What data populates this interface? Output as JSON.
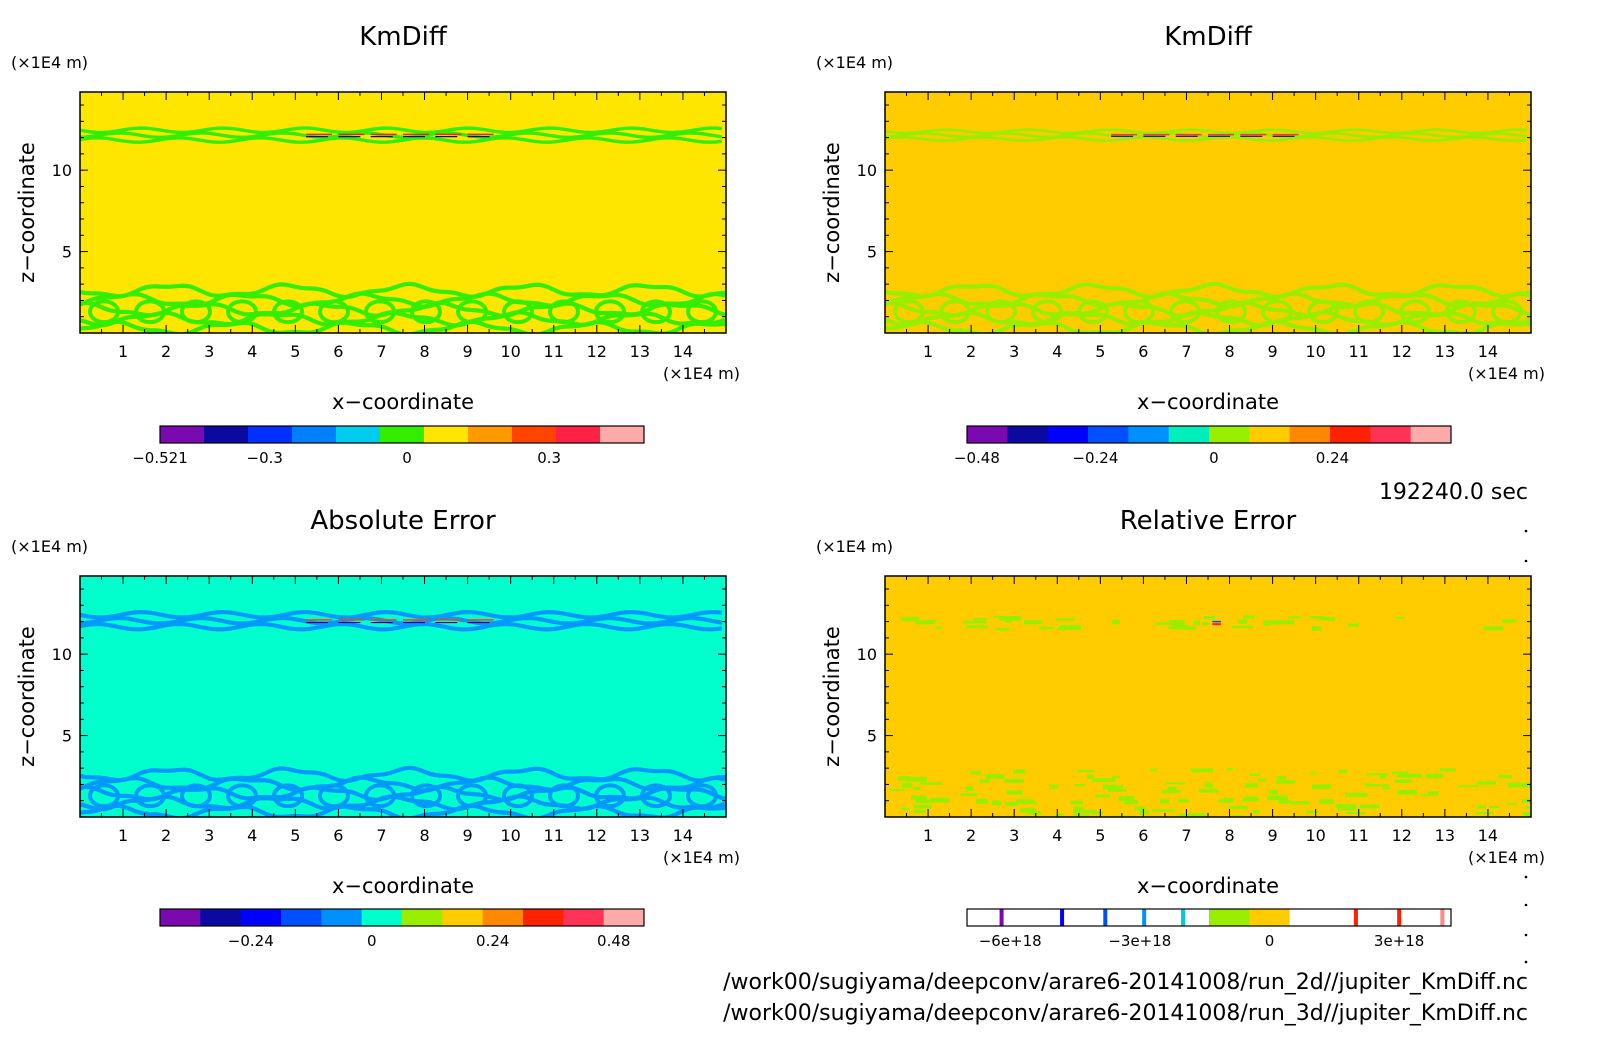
{
  "timestamp": "192240.0 sec",
  "file_paths": [
    "/work00/sugiyama/deepconv/arare6-20141008/run_2d//jupiter_KmDiff.nc",
    "/work00/sugiyama/deepconv/arare6-20141008/run_3d//jupiter_KmDiff.nc"
  ],
  "chart_data": [
    {
      "type": "heatmap",
      "title": "KmDiff",
      "xlabel": "x−coordinate",
      "ylabel": "z−coordinate",
      "x_unit": "(×1E4 m)",
      "y_unit": "(×1E4 m)",
      "xlim": [
        0,
        15
      ],
      "ylim": [
        0,
        14.8
      ],
      "x_ticks": [
        1,
        2,
        3,
        4,
        5,
        6,
        7,
        8,
        9,
        10,
        11,
        12,
        13,
        14
      ],
      "y_ticks": [
        5,
        10
      ],
      "background_color": "#ffe600",
      "bands": [
        {
          "y_range": [
            11.7,
            12.6
          ],
          "color": "#33ee00",
          "texture": "wave"
        },
        {
          "y_range": [
            0,
            2.9
          ],
          "color": "#33ee00",
          "texture": "swirl"
        }
      ],
      "colorbar": {
        "colors": [
          "#7a0ab0",
          "#0a0aa0",
          "#0030ff",
          "#0080ff",
          "#00ccee",
          "#33ee00",
          "#ffe600",
          "#ff9900",
          "#ff4400",
          "#ff2244",
          "#ffaaaa"
        ],
        "tick_values": [
          -0.521,
          -0.3,
          0,
          0.3
        ],
        "tick_labels": [
          "−0.521",
          "−0.3",
          "0",
          "0.3"
        ],
        "range": [
          -0.521,
          0.5
        ]
      }
    },
    {
      "type": "heatmap",
      "title": "KmDiff",
      "xlabel": "x−coordinate",
      "ylabel": "z−coordinate",
      "x_unit": "(×1E4 m)",
      "y_unit": "(×1E4 m)",
      "xlim": [
        0,
        15
      ],
      "ylim": [
        0,
        14.8
      ],
      "x_ticks": [
        1,
        2,
        3,
        4,
        5,
        6,
        7,
        8,
        9,
        10,
        11,
        12,
        13,
        14
      ],
      "y_ticks": [
        5,
        10
      ],
      "background_color": "#ffcc00",
      "bands": [
        {
          "y_range": [
            11.8,
            12.5
          ],
          "color": "#99ee00",
          "texture": "wave"
        },
        {
          "y_range": [
            0,
            2.9
          ],
          "color": "#99ee00",
          "texture": "swirl"
        }
      ],
      "colorbar": {
        "colors": [
          "#7a0ab0",
          "#0a0aa0",
          "#0000ff",
          "#0050ff",
          "#0090ff",
          "#00eebb",
          "#99ee00",
          "#ffcc00",
          "#ff8800",
          "#ff2200",
          "#ff3355",
          "#ffaaaa"
        ],
        "tick_values": [
          -0.48,
          -0.24,
          0,
          0.24
        ],
        "tick_labels": [
          "−0.48",
          "−0.24",
          "0",
          "0.24"
        ],
        "range": [
          -0.5,
          0.48
        ]
      }
    },
    {
      "type": "heatmap",
      "title": "Absolute Error",
      "xlabel": "x−coordinate",
      "ylabel": "z−coordinate",
      "x_unit": "(×1E4 m)",
      "y_unit": "(×1E4 m)",
      "xlim": [
        0,
        15
      ],
      "ylim": [
        0,
        14.8
      ],
      "x_ticks": [
        1,
        2,
        3,
        4,
        5,
        6,
        7,
        8,
        9,
        10,
        11,
        12,
        13,
        14
      ],
      "y_ticks": [
        5,
        10
      ],
      "background_color": "#00ffcc",
      "bands": [
        {
          "y_range": [
            11.5,
            12.6
          ],
          "color": "#0099ff",
          "texture": "wave"
        },
        {
          "y_range": [
            0,
            2.9
          ],
          "color": "#0099ff",
          "texture": "swirl"
        }
      ],
      "colorbar": {
        "colors": [
          "#7a0ab0",
          "#0a0aa0",
          "#0000ff",
          "#0050ff",
          "#0090ff",
          "#00ffcc",
          "#99ee00",
          "#ffcc00",
          "#ff8800",
          "#ff2200",
          "#ff3355",
          "#ffaaaa"
        ],
        "tick_values": [
          -0.24,
          0,
          0.24,
          0.48
        ],
        "tick_labels": [
          "−0.24",
          "0",
          "0.24",
          "0.48"
        ],
        "range": [
          -0.42,
          0.54
        ]
      }
    },
    {
      "type": "heatmap",
      "title": "Relative Error",
      "xlabel": "x−coordinate",
      "ylabel": "z−coordinate",
      "x_unit": "(×1E4 m)",
      "y_unit": "(×1E4 m)",
      "xlim": [
        0,
        15
      ],
      "ylim": [
        0,
        14.8
      ],
      "x_ticks": [
        1,
        2,
        3,
        4,
        5,
        6,
        7,
        8,
        9,
        10,
        11,
        12,
        13,
        14
      ],
      "y_ticks": [
        5,
        10
      ],
      "background_color": "#ffcc00",
      "bands": [
        {
          "y_range": [
            11.6,
            12.4
          ],
          "color": "#99ee00",
          "texture": "sparse"
        },
        {
          "y_range": [
            0,
            3.0
          ],
          "color": "#99ee00",
          "texture": "sparse"
        }
      ],
      "colorbar": {
        "colors": [
          "#ffffff",
          "#ffffff",
          "#ffffff",
          "#ffffff",
          "#ffffff",
          "#ffffff",
          "#99ee00",
          "#ffcc00",
          "#ffffff",
          "#ffffff",
          "#ffffff",
          "#ffffff"
        ],
        "tick_values": [
          -6e+18,
          -3e+18,
          0,
          3e+18
        ],
        "tick_labels": [
          "−6e+18",
          "−3e+18",
          "0",
          "3e+18"
        ],
        "range": [
          -7e+18,
          4.2e+18
        ],
        "markers": [
          {
            "value": -6.2e+18,
            "color": "#7a0ab0"
          },
          {
            "value": -4.8e+18,
            "color": "#0000ff"
          },
          {
            "value": -3.8e+18,
            "color": "#0050ff"
          },
          {
            "value": -2.9e+18,
            "color": "#0090ff"
          },
          {
            "value": -2e+18,
            "color": "#00cccc"
          },
          {
            "value": 2e+18,
            "color": "#ff2200"
          },
          {
            "value": 3e+18,
            "color": "#ff2200"
          },
          {
            "value": 4e+18,
            "color": "#ff8888"
          }
        ]
      }
    }
  ]
}
